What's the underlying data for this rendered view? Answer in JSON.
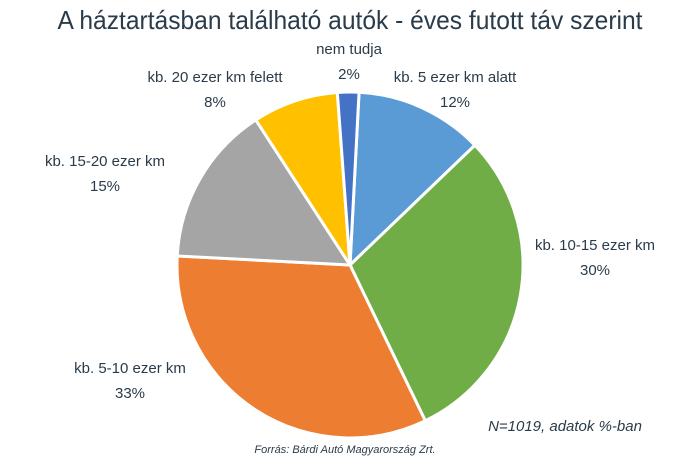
{
  "chart_data": {
    "type": "pie",
    "title": "A háztartásban található autók - éves futott táv szerint",
    "categories": [
      "kb. 5 ezer km alatt",
      "kb. 10-15 ezer km",
      "kb. 5-10 ezer km",
      "kb. 15-20 ezer km",
      "kb. 20 ezer km felett",
      "nem tudja"
    ],
    "values": [
      12,
      30,
      33,
      15,
      8,
      2
    ],
    "value_labels": [
      "12%",
      "30%",
      "33%",
      "15%",
      "8%",
      "2%"
    ],
    "colors": [
      "#5b9bd5",
      "#70ad47",
      "#ed7d31",
      "#a5a5a5",
      "#ffc000",
      "#4472c4"
    ],
    "annotation": "N=1019, adatok %-ban",
    "source": "Forrás: Bárdi Autó Magyarország Zrt."
  }
}
